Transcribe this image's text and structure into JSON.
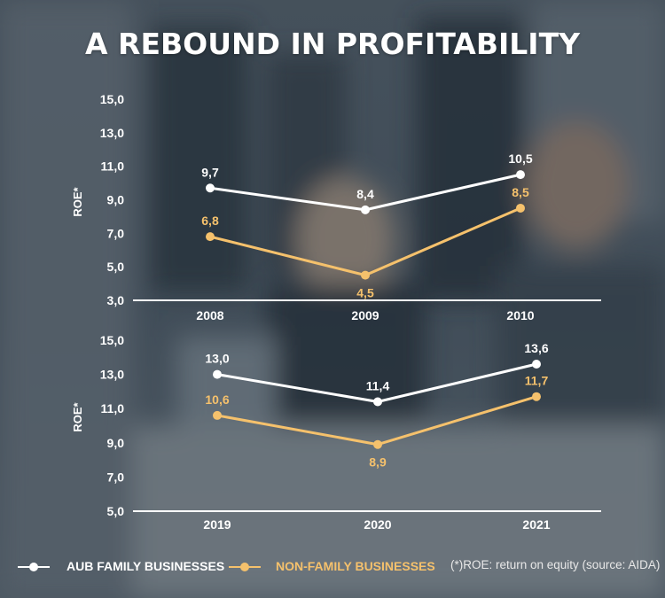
{
  "title": "A REBOUND IN PROFITABILITY",
  "colors": {
    "family": "#ffffff",
    "non_family": "#f5c16c",
    "axis": "#ffffff"
  },
  "legend": {
    "family_label": "AUB FAMILY BUSINESSES",
    "non_family_label": "NON-FAMILY BUSINESSES"
  },
  "footnote": "(*)ROE: return on equity (source: AIDA)",
  "chart_data": [
    {
      "type": "line",
      "ylabel": "ROE*",
      "categories": [
        "2008",
        "2009",
        "2010"
      ],
      "yticks": [
        "3,0",
        "5,0",
        "7,0",
        "9,0",
        "11,0",
        "13,0",
        "15,0"
      ],
      "ylim": [
        3,
        15
      ],
      "series": [
        {
          "name": "AUB FAMILY BUSINESSES",
          "values": [
            9.7,
            8.4,
            10.5
          ],
          "labels": [
            "9,7",
            "8,4",
            "10,5"
          ]
        },
        {
          "name": "NON-FAMILY BUSINESSES",
          "values": [
            6.8,
            4.5,
            8.5
          ],
          "labels": [
            "6,8",
            "4,5",
            "8,5"
          ]
        }
      ]
    },
    {
      "type": "line",
      "ylabel": "ROE*",
      "categories": [
        "2019",
        "2020",
        "2021"
      ],
      "yticks": [
        "5,0",
        "7,0",
        "9,0",
        "11,0",
        "13,0",
        "15,0"
      ],
      "ylim": [
        5,
        15
      ],
      "series": [
        {
          "name": "AUB FAMILY BUSINESSES",
          "values": [
            13.0,
            11.4,
            13.6
          ],
          "labels": [
            "13,0",
            "11,4",
            "13,6"
          ]
        },
        {
          "name": "NON-FAMILY BUSINESSES",
          "values": [
            10.6,
            8.9,
            11.7
          ],
          "labels": [
            "10,6",
            "8,9",
            "11,7"
          ]
        }
      ]
    }
  ]
}
